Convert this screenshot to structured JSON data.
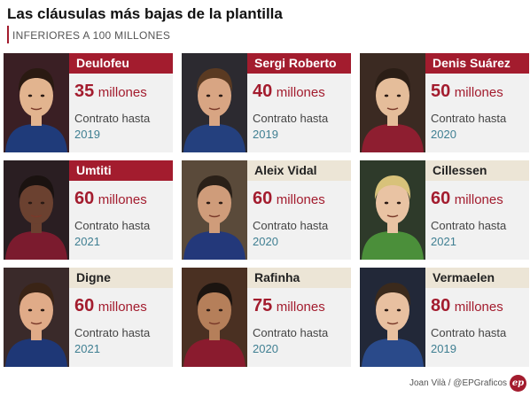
{
  "header": {
    "title": "Las cláusulas más bajas de la plantilla",
    "subtitle": "INFERIORES A 100 MILLONES"
  },
  "labels": {
    "unit": "millones",
    "contract": "Contrato hasta"
  },
  "colors": {
    "accent": "#a31c2e",
    "year": "#3f7f92",
    "beige": "#ece5d6",
    "card_bg": "#f1f1f1"
  },
  "players": [
    {
      "name": "Deulofeu",
      "amount": "35",
      "year": "2019",
      "style": "red",
      "photo": "player-photo"
    },
    {
      "name": "Sergi Roberto",
      "amount": "40",
      "year": "2019",
      "style": "red",
      "photo": "player-photo"
    },
    {
      "name": "Denis Suárez",
      "amount": "50",
      "year": "2020",
      "style": "red",
      "photo": "player-photo"
    },
    {
      "name": "Umtiti",
      "amount": "60",
      "year": "2021",
      "style": "red",
      "photo": "player-photo"
    },
    {
      "name": "Aleix Vidal",
      "amount": "60",
      "year": "2020",
      "style": "beige",
      "photo": "player-photo"
    },
    {
      "name": "Cillessen",
      "amount": "60",
      "year": "2021",
      "style": "beige",
      "photo": "player-photo"
    },
    {
      "name": "Digne",
      "amount": "60",
      "year": "2021",
      "style": "beige",
      "photo": "player-photo"
    },
    {
      "name": "Rafinha",
      "amount": "75",
      "year": "2020",
      "style": "beige",
      "photo": "player-photo"
    },
    {
      "name": "Vermaelen",
      "amount": "80",
      "year": "2019",
      "style": "beige",
      "photo": "player-photo"
    }
  ],
  "footer": {
    "credit": "Joan Vilà / @EPGraficos",
    "logo_text": "ep"
  }
}
